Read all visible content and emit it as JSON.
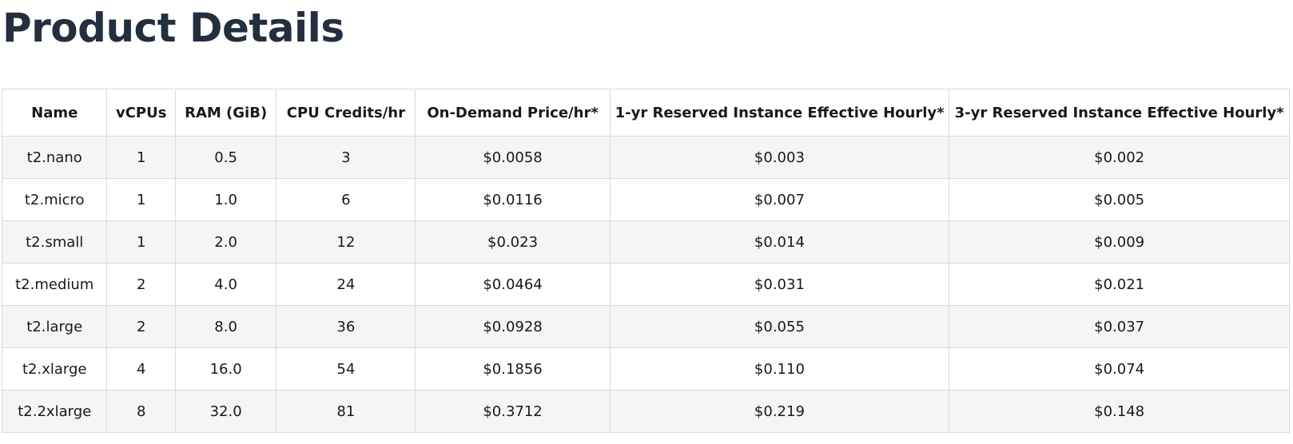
{
  "page": {
    "title": "Product Details"
  },
  "table": {
    "columns": [
      "Name",
      "vCPUs",
      "RAM (GiB)",
      "CPU Credits/hr",
      "On-Demand Price/hr*",
      "1-yr Reserved Instance Effective Hourly*",
      "3-yr Reserved Instance Effective Hourly*"
    ],
    "rows": [
      [
        "t2.nano",
        "1",
        "0.5",
        "3",
        "$0.0058",
        "$0.003",
        "$0.002"
      ],
      [
        "t2.micro",
        "1",
        "1.0",
        "6",
        "$0.0116",
        "$0.007",
        "$0.005"
      ],
      [
        "t2.small",
        "1",
        "2.0",
        "12",
        "$0.023",
        "$0.014",
        "$0.009"
      ],
      [
        "t2.medium",
        "2",
        "4.0",
        "24",
        "$0.0464",
        "$0.031",
        "$0.021"
      ],
      [
        "t2.large",
        "2",
        "8.0",
        "36",
        "$0.0928",
        "$0.055",
        "$0.037"
      ],
      [
        "t2.xlarge",
        "4",
        "16.0",
        "54",
        "$0.1856",
        "$0.110",
        "$0.074"
      ],
      [
        "t2.2xlarge",
        "8",
        "32.0",
        "81",
        "$0.3712",
        "$0.219",
        "$0.148"
      ]
    ]
  },
  "colors": {
    "title": "#232f3e",
    "text": "#16191f",
    "border": "#d5dbdb",
    "row_stripe": "#f5f5f5"
  }
}
